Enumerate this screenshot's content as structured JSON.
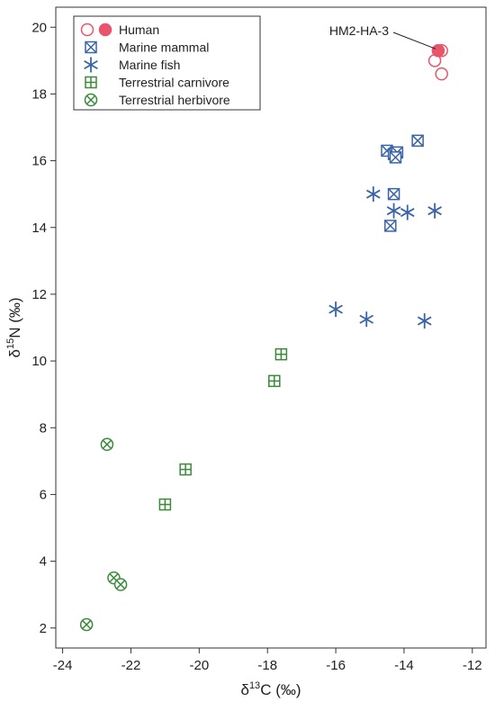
{
  "chart_data": {
    "type": "scatter",
    "xlabel_base": "δ",
    "xlabel_sup": "13",
    "xlabel_rest": "C (‰)",
    "ylabel_base": "δ",
    "ylabel_sup": "15",
    "ylabel_rest": "N (‰)",
    "xlim": [
      -24.2,
      -11.6
    ],
    "ylim": [
      1.4,
      20.6
    ],
    "xticks": [
      -24,
      -22,
      -20,
      -18,
      -16,
      -14,
      -12
    ],
    "yticks": [
      2,
      4,
      6,
      8,
      10,
      12,
      14,
      16,
      18,
      20
    ],
    "legend_position": "top-left",
    "colors": {
      "human": "#e8546a",
      "marine": "#3a64a8",
      "terrestrial": "#3a8a3a"
    },
    "series": [
      {
        "name": "Human",
        "marker": "circle-open",
        "color_key": "human",
        "points": [
          {
            "x": -12.9,
            "y": 19.3
          },
          {
            "x": -13.1,
            "y": 19.0
          },
          {
            "x": -12.9,
            "y": 18.6
          }
        ]
      },
      {
        "name": "Human",
        "marker": "circle-filled",
        "color_key": "human",
        "points": [
          {
            "x": -13.0,
            "y": 19.3
          }
        ]
      },
      {
        "name": "Marine mammal",
        "marker": "square-x",
        "color_key": "marine",
        "points": [
          {
            "x": -14.5,
            "y": 16.3
          },
          {
            "x": -14.3,
            "y": 16.2
          },
          {
            "x": -14.2,
            "y": 16.25
          },
          {
            "x": -14.25,
            "y": 16.1
          },
          {
            "x": -13.6,
            "y": 16.6
          },
          {
            "x": -14.3,
            "y": 15.0
          },
          {
            "x": -14.4,
            "y": 14.05
          }
        ]
      },
      {
        "name": "Marine fish",
        "marker": "asterisk",
        "color_key": "marine",
        "points": [
          {
            "x": -14.9,
            "y": 15.0
          },
          {
            "x": -14.3,
            "y": 14.5
          },
          {
            "x": -13.9,
            "y": 14.45
          },
          {
            "x": -13.1,
            "y": 14.5
          },
          {
            "x": -16.0,
            "y": 11.55
          },
          {
            "x": -15.1,
            "y": 11.25
          },
          {
            "x": -13.4,
            "y": 11.2
          }
        ]
      },
      {
        "name": "Terrestrial carnivore",
        "marker": "square-plus",
        "color_key": "terrestrial",
        "points": [
          {
            "x": -17.6,
            "y": 10.2
          },
          {
            "x": -17.8,
            "y": 9.4
          },
          {
            "x": -20.4,
            "y": 6.75
          },
          {
            "x": -21.0,
            "y": 5.7
          }
        ]
      },
      {
        "name": "Terrestrial herbivore",
        "marker": "circle-x",
        "color_key": "terrestrial",
        "points": [
          {
            "x": -22.7,
            "y": 7.5
          },
          {
            "x": -22.5,
            "y": 3.5
          },
          {
            "x": -22.3,
            "y": 3.3
          },
          {
            "x": -23.3,
            "y": 2.1
          }
        ]
      }
    ],
    "legend": [
      {
        "label": "Human",
        "markers": [
          "circle-open",
          "circle-filled"
        ],
        "color_key": "human"
      },
      {
        "label": "Marine mammal",
        "markers": [
          "square-x"
        ],
        "color_key": "marine"
      },
      {
        "label": "Marine fish",
        "markers": [
          "asterisk"
        ],
        "color_key": "marine"
      },
      {
        "label": "Terrestrial carnivore",
        "markers": [
          "square-plus"
        ],
        "color_key": "terrestrial"
      },
      {
        "label": "Terrestrial herbivore",
        "markers": [
          "circle-x"
        ],
        "color_key": "terrestrial"
      }
    ],
    "annotations": [
      {
        "text": "HM2-HA-3",
        "x": -13.0,
        "y": 19.3
      }
    ]
  }
}
